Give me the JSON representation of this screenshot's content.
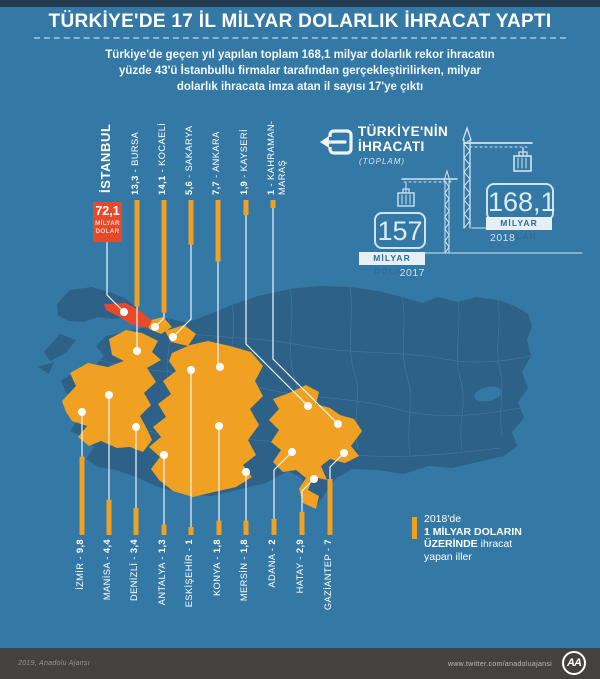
{
  "header": {
    "title": "TÜRKİYE'DE 17 İL MİLYAR DOLARLIK İHRACAT YAPTI",
    "subtitle_lines": [
      "Türkiye'de geçen yıl yapılan toplam 168,1 milyar dolarlık rekor ihracatın",
      "yüzde 43'ü İstanbullu firmalar tarafından gerçekleştirilirken, milyar",
      "dolarlık ihracata imza atan il sayısı 17'ye çıktı"
    ]
  },
  "export_panel": {
    "heading_line1": "TÜRKİYE'NİN",
    "heading_line2": "İHRACATI",
    "subheading": "(TOPLAM)",
    "totals": [
      {
        "value": "157",
        "unit": "MİLYAR DOLAR",
        "year": "2017"
      },
      {
        "value": "168,1",
        "unit": "MİLYAR DOLAR",
        "year": "2018"
      }
    ]
  },
  "istanbul_callout": {
    "name": "İSTANBUL",
    "value_label": "72,1",
    "unit": "MİLYAR DOLAR"
  },
  "provinces_top": [
    {
      "name": "BURSA",
      "value_label": "13,3",
      "value": 13.3
    },
    {
      "name": "KOCAELİ",
      "value_label": "14,1",
      "value": 14.1
    },
    {
      "name": "SAKARYA",
      "value_label": "5,6",
      "value": 5.6
    },
    {
      "name": "ANKARA",
      "value_label": "7,7",
      "value": 7.7
    },
    {
      "name": "KAYSERİ",
      "value_label": "1,9",
      "value": 1.9
    },
    {
      "name": "KAHRAMAN-MARAŞ",
      "value_label": "1",
      "value": 1
    }
  ],
  "provinces_bottom": [
    {
      "name": "İZMİR",
      "value_label": "9,8",
      "value": 9.8
    },
    {
      "name": "MANİSA",
      "value_label": "4,4",
      "value": 4.4
    },
    {
      "name": "DENİZLİ",
      "value_label": "3,4",
      "value": 3.4
    },
    {
      "name": "ANTALYA",
      "value_label": "1,3",
      "value": 1.3
    },
    {
      "name": "ESKİŞEHİR",
      "value_label": "1",
      "value": 1
    },
    {
      "name": "KONYA",
      "value_label": "1,8",
      "value": 1.8
    },
    {
      "name": "MERSİN",
      "value_label": "1,8",
      "value": 1.8
    },
    {
      "name": "ADANA",
      "value_label": "2",
      "value": 2
    },
    {
      "name": "HATAY",
      "value_label": "2,9",
      "value": 2.9
    },
    {
      "name": "GAZİANTEP",
      "value_label": "7",
      "value": 7
    }
  ],
  "legend": {
    "line1": "2018'de",
    "line2": "1 MİLYAR DOLARIN",
    "line3_bold": "ÜZERİNDE",
    "line3_rest": "ihracat",
    "line4": "yapan iller"
  },
  "footer": {
    "credit": "2019, Anadolu Ajansı",
    "url": "www.twitter.com/anadoluajansi",
    "logo": "AA"
  },
  "colors": {
    "background": "#3478a5",
    "map": "#2d6187",
    "highlight_orange": "#f0a121",
    "istanbul_red": "#e74a2b",
    "footer_gray": "#454140"
  },
  "chart_data": {
    "type": "bar",
    "title": "2018'de 1 milyar doların üzerinde ihracat yapan iller (milyar dolar)",
    "categories": [
      "İstanbul",
      "Bursa",
      "Kocaeli",
      "Sakarya",
      "Ankara",
      "Kayseri",
      "Kahramanmaraş",
      "İzmir",
      "Manisa",
      "Denizli",
      "Antalya",
      "Eskişehir",
      "Konya",
      "Mersin",
      "Adana",
      "Hatay",
      "Gaziantep"
    ],
    "values": [
      72.1,
      13.3,
      14.1,
      5.6,
      7.7,
      1.9,
      1,
      9.8,
      4.4,
      3.4,
      1.3,
      1,
      1.8,
      1.8,
      2,
      2.9,
      7
    ],
    "unit": "milyar dolar",
    "totals": {
      "2017": 157,
      "2018": 168.1
    },
    "legend_note": "2018'de 1 milyar doların üzerinde ihracat yapan iller"
  }
}
